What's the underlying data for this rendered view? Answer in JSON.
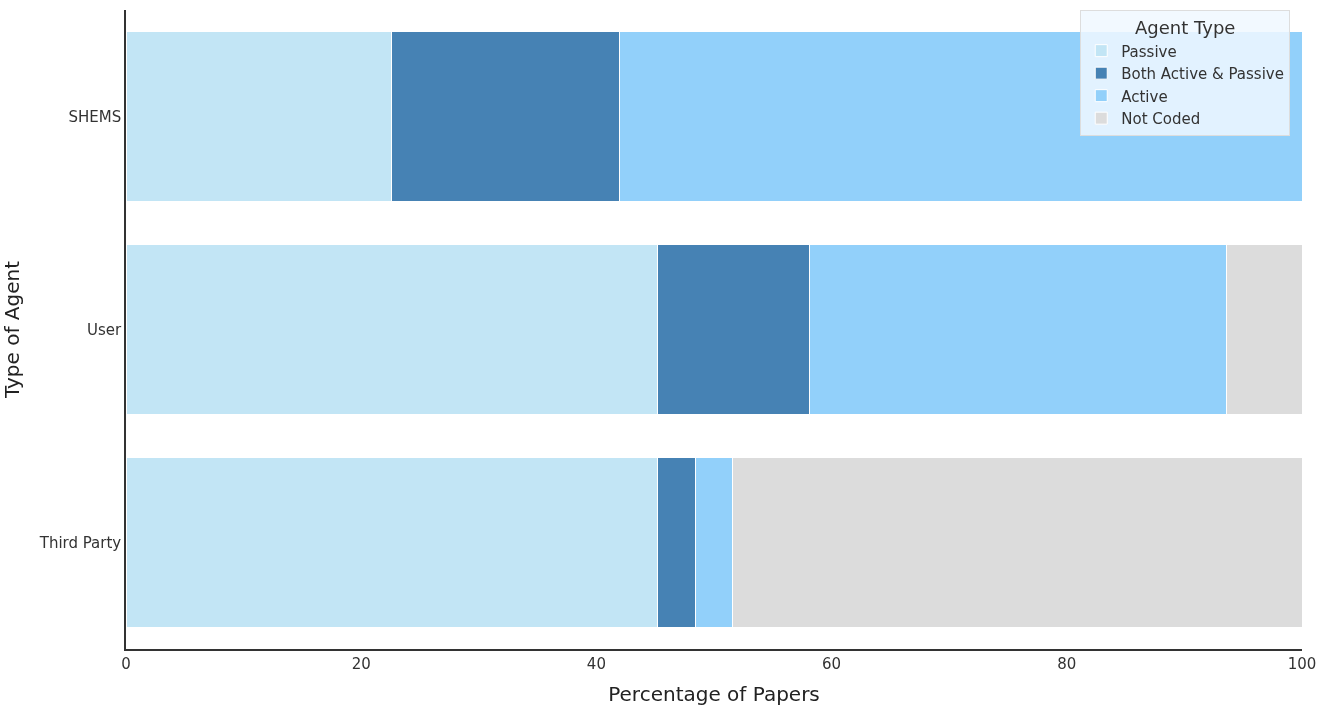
{
  "chart_data": {
    "type": "bar",
    "orientation": "horizontal",
    "stacked": true,
    "xlabel": "Percentage of Papers",
    "ylabel": "Type of Agent",
    "legend_title": "Agent Type",
    "legend": "top right",
    "categories": [
      "SHEMS",
      "User",
      "Third Party"
    ],
    "xlim": [
      0,
      100
    ],
    "xticks": [
      0,
      20,
      40,
      60,
      80,
      100
    ],
    "series": [
      {
        "name": "Passive",
        "color": "#c2e5f5",
        "values": [
          22.6,
          45.2,
          45.2
        ]
      },
      {
        "name": "Both Active & Passive",
        "color": "#4682b4",
        "values": [
          19.4,
          12.9,
          3.2
        ]
      },
      {
        "name": "Active",
        "color": "#92d0fa",
        "values": [
          58.1,
          35.5,
          3.2
        ]
      },
      {
        "name": "Not Coded",
        "color": "#dcdcdc",
        "values": [
          null,
          6.5,
          48.4
        ]
      }
    ]
  }
}
